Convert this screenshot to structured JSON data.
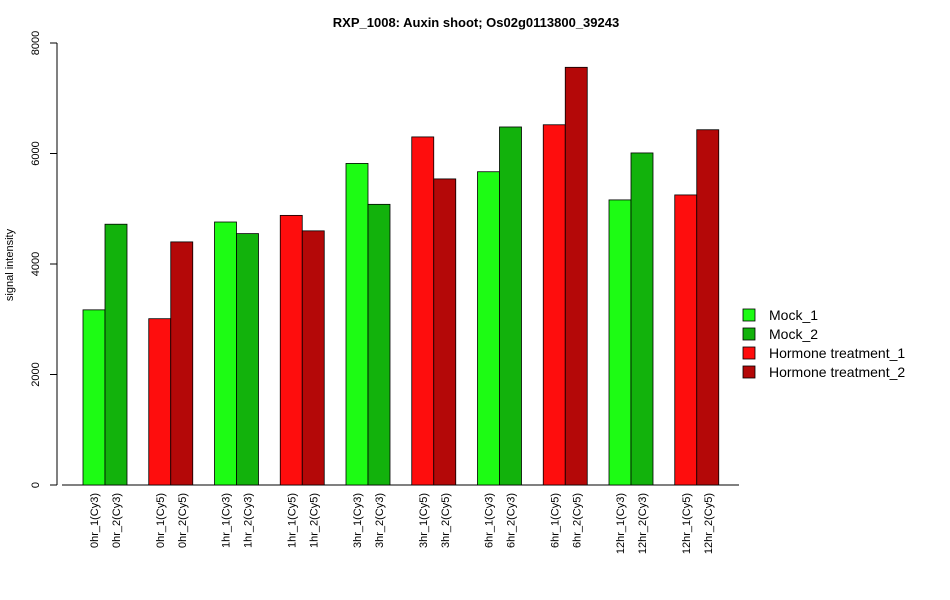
{
  "chart_data": {
    "type": "bar",
    "title": "RXP_1008: Auxin shoot; Os02g0113800_39243",
    "xlabel": "",
    "ylabel": "signal intensity",
    "ylim": [
      0,
      8000
    ],
    "yticks": [
      0,
      2000,
      4000,
      6000,
      8000
    ],
    "grid": false,
    "legend_position": "right",
    "legend": [
      {
        "name": "Mock_1",
        "color": "#1dfc14"
      },
      {
        "name": "Mock_2",
        "color": "#12b20c"
      },
      {
        "name": "Hormone treatment_1",
        "color": "#fe0d0d"
      },
      {
        "name": "Hormone treatment_2",
        "color": "#b40808"
      }
    ],
    "groups": [
      {
        "bars": [
          {
            "label": "0hr_1(Cy3)",
            "value": 3170,
            "color": "#1dfc14"
          },
          {
            "label": "0hr_2(Cy3)",
            "value": 4720,
            "color": "#12b20c"
          }
        ]
      },
      {
        "bars": [
          {
            "label": "0hr_1(Cy5)",
            "value": 3010,
            "color": "#fe0d0d"
          },
          {
            "label": "0hr_2(Cy5)",
            "value": 4400,
            "color": "#b40808"
          }
        ]
      },
      {
        "bars": [
          {
            "label": "1hr_1(Cy3)",
            "value": 4760,
            "color": "#1dfc14"
          },
          {
            "label": "1hr_2(Cy3)",
            "value": 4550,
            "color": "#12b20c"
          }
        ]
      },
      {
        "bars": [
          {
            "label": "1hr_1(Cy5)",
            "value": 4880,
            "color": "#fe0d0d"
          },
          {
            "label": "1hr_2(Cy5)",
            "value": 4600,
            "color": "#b40808"
          }
        ]
      },
      {
        "bars": [
          {
            "label": "3hr_1(Cy3)",
            "value": 5820,
            "color": "#1dfc14"
          },
          {
            "label": "3hr_2(Cy3)",
            "value": 5080,
            "color": "#12b20c"
          }
        ]
      },
      {
        "bars": [
          {
            "label": "3hr_1(Cy5)",
            "value": 6300,
            "color": "#fe0d0d"
          },
          {
            "label": "3hr_2(Cy5)",
            "value": 5540,
            "color": "#b40808"
          }
        ]
      },
      {
        "bars": [
          {
            "label": "6hr_1(Cy3)",
            "value": 5670,
            "color": "#1dfc14"
          },
          {
            "label": "6hr_2(Cy3)",
            "value": 6480,
            "color": "#12b20c"
          }
        ]
      },
      {
        "bars": [
          {
            "label": "6hr_1(Cy5)",
            "value": 6520,
            "color": "#fe0d0d"
          },
          {
            "label": "6hr_2(Cy5)",
            "value": 7560,
            "color": "#b40808"
          }
        ]
      },
      {
        "bars": [
          {
            "label": "12hr_1(Cy3)",
            "value": 5160,
            "color": "#1dfc14"
          },
          {
            "label": "12hr_2(Cy3)",
            "value": 6010,
            "color": "#12b20c"
          }
        ]
      },
      {
        "bars": [
          {
            "label": "12hr_1(Cy5)",
            "value": 5250,
            "color": "#fe0d0d"
          },
          {
            "label": "12hr_2(Cy5)",
            "value": 6430,
            "color": "#b40808"
          }
        ]
      }
    ]
  }
}
